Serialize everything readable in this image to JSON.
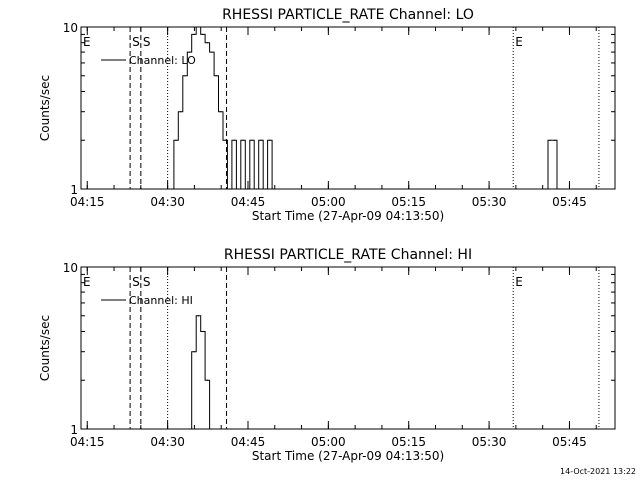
{
  "footer": {
    "timestamp": "14-Oct-2021 13:22"
  },
  "chart_data": [
    {
      "type": "line",
      "title": "RHESSI PARTICLE_RATE Channel: LO",
      "xlabel": "Start Time (27-Apr-09 04:13:50)",
      "ylabel": "Counts/sec",
      "y_scale": "log",
      "ylim": [
        1,
        10
      ],
      "y_ticks": [
        "1",
        "10"
      ],
      "xlim": [
        "04:13:50",
        "05:53:30"
      ],
      "x_ticks": [
        "04:15",
        "04:30",
        "04:45",
        "05:00",
        "05:15",
        "05:30",
        "05:45"
      ],
      "grid": false,
      "legend": {
        "placement": "top-left",
        "entries": [
          "Channel: LO"
        ]
      },
      "series": [
        {
          "name": "Channel: LO",
          "x": [
            "04:30:20",
            "04:31:10",
            "04:32:00",
            "04:32:50",
            "04:33:40",
            "04:34:30",
            "04:35:20",
            "04:36:10",
            "04:37:00",
            "04:37:50",
            "04:38:40",
            "04:39:30",
            "04:40:20",
            "04:41:10",
            "04:42:00",
            "04:42:50",
            "04:43:40",
            "04:44:30",
            "04:45:20",
            "04:46:10",
            "04:47:00",
            "04:47:50",
            "04:48:40",
            "04:49:30",
            "05:40:10",
            "05:41:00",
            "05:41:50",
            "05:42:40"
          ],
          "y": [
            1,
            2,
            3,
            5,
            7,
            9,
            10,
            9,
            8,
            7,
            5,
            3,
            2,
            1,
            2,
            1,
            2,
            1,
            2,
            1,
            2,
            1,
            2,
            1,
            1,
            2,
            2,
            1
          ]
        }
      ],
      "markers": [
        {
          "label": "E",
          "time": "04:13:50",
          "style": "dotted"
        },
        {
          "label": "S",
          "time": "04:23:00",
          "style": "dashed"
        },
        {
          "label": "S",
          "time": "04:25:00",
          "style": "dashed"
        },
        {
          "label": "",
          "time": "04:30:00",
          "style": "dotted"
        },
        {
          "label": "",
          "time": "04:41:00",
          "style": "dashed"
        },
        {
          "label": "E",
          "time": "05:34:30",
          "style": "dotted"
        },
        {
          "label": "",
          "time": "05:50:30",
          "style": "dotted"
        }
      ]
    },
    {
      "type": "line",
      "title": "RHESSI PARTICLE_RATE Channel: HI",
      "xlabel": "Start Time (27-Apr-09 04:13:50)",
      "ylabel": "Counts/sec",
      "y_scale": "log",
      "ylim": [
        1,
        10
      ],
      "y_ticks": [
        "1",
        "10"
      ],
      "xlim": [
        "04:13:50",
        "05:53:30"
      ],
      "x_ticks": [
        "04:15",
        "04:30",
        "04:45",
        "05:00",
        "05:15",
        "05:30",
        "05:45"
      ],
      "grid": false,
      "legend": {
        "placement": "top-left",
        "entries": [
          "Channel: HI"
        ]
      },
      "series": [
        {
          "name": "Channel: HI",
          "x": [
            "04:33:40",
            "04:34:30",
            "04:35:20",
            "04:36:10",
            "04:37:00",
            "04:37:50"
          ],
          "y": [
            1,
            3,
            5,
            4,
            2,
            1
          ]
        }
      ],
      "markers": [
        {
          "label": "E",
          "time": "04:13:50",
          "style": "dotted"
        },
        {
          "label": "S",
          "time": "04:23:00",
          "style": "dashed"
        },
        {
          "label": "S",
          "time": "04:25:00",
          "style": "dashed"
        },
        {
          "label": "",
          "time": "04:30:00",
          "style": "dotted"
        },
        {
          "label": "",
          "time": "04:41:00",
          "style": "dashed"
        },
        {
          "label": "E",
          "time": "05:34:30",
          "style": "dotted"
        },
        {
          "label": "",
          "time": "05:50:30",
          "style": "dotted"
        }
      ]
    }
  ]
}
